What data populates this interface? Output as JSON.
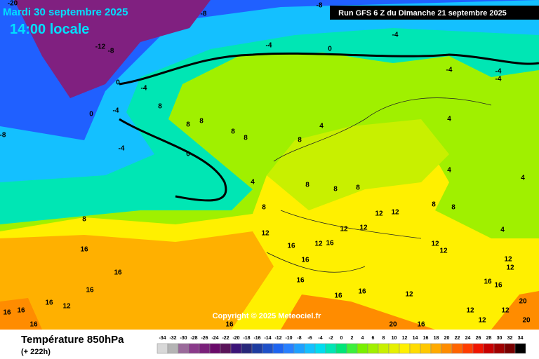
{
  "header": {
    "date": "Mardi 30 septembre 2025",
    "time": "14:00 locale",
    "run": "Run GFS 6 Z du Dimanche 21 septembre 2025"
  },
  "copyright": "Copyright © 2025 Meteociel.fr",
  "footer": {
    "title": "Température 850hPa",
    "lead": "(+ 222h)"
  },
  "scale": {
    "labels": [
      "-34",
      "-32",
      "-30",
      "-28",
      "-26",
      "-24",
      "-22",
      "-20",
      "-18",
      "-16",
      "-14",
      "-12",
      "-10",
      "-8",
      "-6",
      "-4",
      "-2",
      "0",
      "2",
      "4",
      "6",
      "8",
      "10",
      "12",
      "14",
      "16",
      "18",
      "20",
      "22",
      "24",
      "26",
      "28",
      "30",
      "32",
      "34"
    ],
    "colors": [
      "#d8d8d8",
      "#b4b4b4",
      "#9a6a9a",
      "#8a3a8a",
      "#7a207a",
      "#6a0a6a",
      "#5a145a",
      "#3c1478",
      "#28287a",
      "#1e3ca0",
      "#1e50c8",
      "#1e64f0",
      "#2880ff",
      "#1ea0ff",
      "#14c0ff",
      "#00dcf0",
      "#00e6b4",
      "#00e678",
      "#3cf03c",
      "#78f000",
      "#a0f000",
      "#c8f000",
      "#e6f000",
      "#fff000",
      "#ffdc00",
      "#ffc800",
      "#ffaa00",
      "#ff8c00",
      "#ff6400",
      "#ff3c00",
      "#f01400",
      "#c80000",
      "#a00000",
      "#780000",
      "#000000"
    ]
  },
  "map": {
    "contour_labels": [
      "-20",
      "-8",
      "-8",
      "-4",
      "-4",
      "0",
      "-12",
      "-8",
      "0",
      "-4",
      "-4",
      "-4",
      "-4",
      "4",
      "0",
      "-4",
      "-4",
      "-8",
      "8",
      "8",
      "8",
      "8",
      "8",
      "4",
      "8",
      "0",
      "4",
      "8",
      "8",
      "8",
      "4",
      "4",
      "8",
      "8",
      "8",
      "12",
      "12",
      "12",
      "12",
      "12",
      "4",
      "8",
      "16",
      "16",
      "12",
      "16",
      "16",
      "12",
      "12",
      "16",
      "16",
      "16",
      "16",
      "12",
      "16",
      "16",
      "16",
      "12",
      "12",
      "12",
      "16",
      "16",
      "12",
      "12",
      "20",
      "16",
      "16",
      "16",
      "20",
      "20",
      "16",
      "12"
    ]
  }
}
